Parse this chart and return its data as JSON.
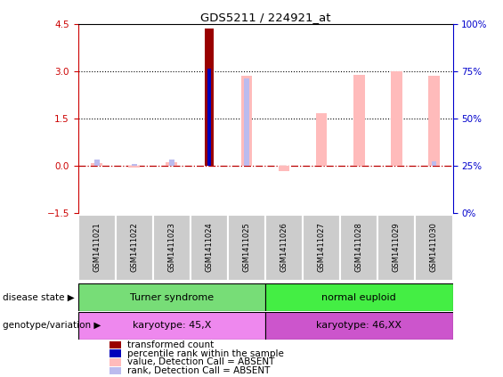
{
  "title": "GDS5211 / 224921_at",
  "samples": [
    "GSM1411021",
    "GSM1411022",
    "GSM1411023",
    "GSM1411024",
    "GSM1411025",
    "GSM1411026",
    "GSM1411027",
    "GSM1411028",
    "GSM1411029",
    "GSM1411030"
  ],
  "transformed_count": [
    null,
    null,
    null,
    4.37,
    null,
    null,
    null,
    null,
    null,
    null
  ],
  "percentile_rank": [
    null,
    null,
    null,
    3.1,
    null,
    null,
    null,
    null,
    null,
    null
  ],
  "value_absent": [
    0.09,
    -0.04,
    0.12,
    null,
    2.88,
    -0.17,
    1.68,
    2.9,
    3.02,
    2.88
  ],
  "rank_absent": [
    0.21,
    0.07,
    0.19,
    null,
    2.78,
    null,
    null,
    null,
    null,
    0.15
  ],
  "ylim_left": [
    -1.5,
    4.5
  ],
  "ylim_right": [
    0,
    100
  ],
  "left_ticks": [
    -1.5,
    0,
    1.5,
    3,
    4.5
  ],
  "right_ticks": [
    0,
    25,
    50,
    75,
    100
  ],
  "hlines_dotted": [
    1.5,
    3.0
  ],
  "hline_dashdot": 0.0,
  "disease_state_groups": [
    {
      "label": "Turner syndrome",
      "start": 0,
      "end": 4,
      "color": "#77dd77"
    },
    {
      "label": "normal euploid",
      "start": 5,
      "end": 9,
      "color": "#44ee44"
    }
  ],
  "karyotype_groups": [
    {
      "label": "karyotype: 45,X",
      "start": 0,
      "end": 4,
      "color": "#ee88ee"
    },
    {
      "label": "karyotype: 46,XX",
      "start": 5,
      "end": 9,
      "color": "#cc55cc"
    }
  ],
  "legend_items": [
    {
      "label": "transformed count",
      "color": "#990000"
    },
    {
      "label": "percentile rank within the sample",
      "color": "#0000bb"
    },
    {
      "label": "value, Detection Call = ABSENT",
      "color": "#ffbbbb"
    },
    {
      "label": "rank, Detection Call = ABSENT",
      "color": "#bbbbee"
    }
  ],
  "colors": {
    "transformed_count": "#990000",
    "percentile_rank": "#0000bb",
    "value_absent": "#ffbbbb",
    "rank_absent": "#bbbbee",
    "zero_dashdot": "#bb0000",
    "left_axis": "#cc0000",
    "right_axis": "#0000cc",
    "label_bg": "#cccccc",
    "label_border": "#ffffff"
  }
}
